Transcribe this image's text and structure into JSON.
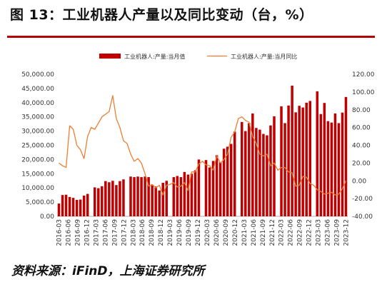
{
  "header": {
    "title": "图 13：工业机器人产量以及同比变动（台，%）"
  },
  "footer": {
    "source": "资料来源：iFinD，上海证券研究所"
  },
  "colors": {
    "bars": "#c00000",
    "line": "#ed7d31",
    "rule": "#b30000"
  },
  "chart_data": {
    "type": "bar",
    "legend_placement": "top",
    "grid": false,
    "series": [
      {
        "name": "工业机器人:产量:当月值",
        "type": "bar",
        "axis": "left",
        "values": [
          4500,
          7500,
          7600,
          6800,
          6500,
          5800,
          5900,
          7300,
          7900,
          null,
          10200,
          9900,
          10600,
          12400,
          12000,
          12500,
          11000,
          12400,
          13000,
          null,
          14000,
          13800,
          14000,
          13800,
          14000,
          13800,
          10900,
          10500,
          9100,
          11800,
          12500,
          null,
          13800,
          14200,
          13800,
          15600,
          14700,
          15000,
          16200,
          20000,
          null,
          19800,
          17200,
          19500,
          21500,
          19000,
          23800,
          24500,
          25500,
          29800,
          null,
          33200,
          30000,
          32800,
          36200,
          31100,
          30500,
          29000,
          28500,
          32000,
          35200,
          null,
          38700,
          32800,
          39000,
          46000,
          36600,
          38900,
          38300,
          40000,
          40600,
          null,
          44000,
          36000,
          39900,
          33500,
          33000,
          36200,
          32800,
          36500,
          42000
        ]
      },
      {
        "name": "工业机器人:产量:当月同比",
        "type": "line",
        "axis": "right",
        "values": [
          20,
          17,
          15,
          62,
          58,
          40,
          35,
          25,
          50,
          60,
          58,
          65,
          72,
          75,
          78,
          96,
          70,
          60,
          45,
          42,
          30,
          22,
          25,
          20,
          8,
          -6,
          -4,
          -8,
          -5,
          -16,
          -5,
          -4,
          -2,
          -7,
          -6,
          -2,
          -11,
          10,
          10,
          19,
          22,
          18,
          17,
          12,
          28,
          20,
          24,
          30,
          49,
          55,
          70,
          72,
          68,
          66,
          50,
          42,
          30,
          28,
          30,
          17,
          20,
          12,
          15,
          15,
          10,
          9,
          -6,
          -5,
          5,
          4,
          -3,
          -5,
          -10,
          -12,
          -15,
          -14,
          -13,
          -16,
          -15,
          -9,
          0
        ]
      }
    ],
    "x_tick_labels": [
      "2016-03",
      "2016-06",
      "2016-09",
      "2016-12",
      "2017-03",
      "2017-06",
      "2017-09",
      "2017-12",
      "2018-03",
      "2018-06",
      "2018-09",
      "2018-12",
      "2019-03",
      "2019-06",
      "2019-09",
      "2019-12",
      "2020-03",
      "2020-06",
      "2020-09",
      "2020-12",
      "2021-03",
      "2021-06",
      "2021-09",
      "2021-12",
      "2022-03",
      "2022-06",
      "2022-09",
      "2022-12",
      "2023-03",
      "2023-06",
      "2023-09",
      "2023-12"
    ],
    "y_left": {
      "ylim": [
        0,
        50000
      ],
      "ticks": [
        "0.00",
        "5,000.00",
        "10,000.00",
        "15,000.00",
        "20,000.00",
        "25,000.00",
        "30,000.00",
        "35,000.00",
        "40,000.00",
        "45,000.00",
        "50,000.00"
      ]
    },
    "y_right": {
      "ylim": [
        -40,
        120
      ],
      "ticks": [
        "-40.00",
        "-20.00",
        "0.00",
        "20.00",
        "40.00",
        "60.00",
        "80.00",
        "100.00",
        "120.00"
      ]
    }
  }
}
